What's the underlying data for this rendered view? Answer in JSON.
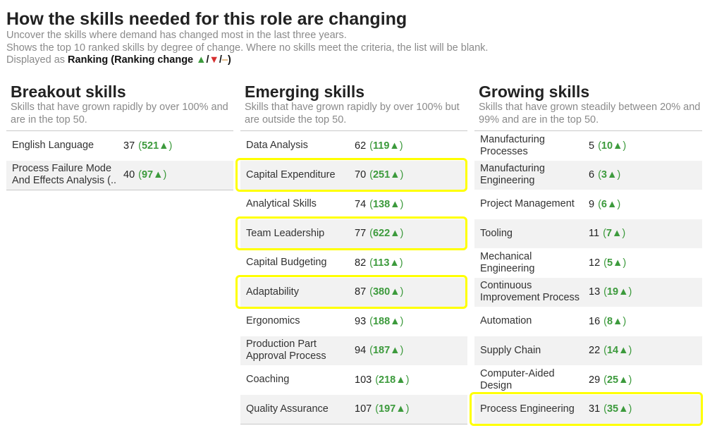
{
  "header": {
    "title": "How the skills needed for this role are changing",
    "subtitle_1": "Uncover the skills where demand has changed most in the last three years.",
    "subtitle_2": "Shows the top 10 ranked skills by degree of change. Where no skills meet the criteria, the list will be blank.",
    "displayed_as_prefix": "Displayed as",
    "displayed_as_value": "Ranking",
    "ranking_change_label": "Ranking change",
    "up_symbol": "▲",
    "down_symbol": "▼",
    "flat_symbol": "–",
    "slash": "/"
  },
  "columns": [
    {
      "title": "Breakout skills",
      "description": "Skills that have grown rapidly by over 100% and are in the top 50.",
      "rows": [
        {
          "name": "English Language",
          "rank": "37",
          "change": "521▲"
        },
        {
          "name": "Process Failure Mode And Effects Analysis (..",
          "rank": "40",
          "change": "97▲"
        }
      ]
    },
    {
      "title": "Emerging skills",
      "description": "Skills that have grown rapidly by over 100% but are outside the top 50.",
      "rows": [
        {
          "name": "Data Analysis",
          "rank": "62",
          "change": "119▲"
        },
        {
          "name": "Capital Expenditure",
          "rank": "70",
          "change": "251▲",
          "highlighted": true
        },
        {
          "name": "Analytical Skills",
          "rank": "74",
          "change": "138▲"
        },
        {
          "name": "Team Leadership",
          "rank": "77",
          "change": "622▲",
          "highlighted": true
        },
        {
          "name": "Capital Budgeting",
          "rank": "82",
          "change": "113▲"
        },
        {
          "name": "Adaptability",
          "rank": "87",
          "change": "380▲",
          "highlighted": true
        },
        {
          "name": "Ergonomics",
          "rank": "93",
          "change": "188▲"
        },
        {
          "name": "Production Part Approval Process",
          "rank": "94",
          "change": "187▲"
        },
        {
          "name": "Coaching",
          "rank": "103",
          "change": "218▲"
        },
        {
          "name": "Quality Assurance",
          "rank": "107",
          "change": "197▲"
        }
      ]
    },
    {
      "title": "Growing skills",
      "description": "Skills that have grown steadily between 20% and 99% and are in the top 50.",
      "rows": [
        {
          "name": "Manufacturing Processes",
          "rank": "5",
          "change": "10▲"
        },
        {
          "name": "Manufacturing Engineering",
          "rank": "6",
          "change": "3▲"
        },
        {
          "name": "Project Management",
          "rank": "9",
          "change": "6▲"
        },
        {
          "name": "Tooling",
          "rank": "11",
          "change": "7▲"
        },
        {
          "name": "Mechanical Engineering",
          "rank": "12",
          "change": "5▲"
        },
        {
          "name": "Continuous Improvement Process",
          "rank": "13",
          "change": "19▲"
        },
        {
          "name": "Automation",
          "rank": "16",
          "change": "8▲"
        },
        {
          "name": "Supply Chain",
          "rank": "22",
          "change": "14▲"
        },
        {
          "name": "Computer-Aided Design",
          "rank": "29",
          "change": "25▲"
        },
        {
          "name": "Process Engineering",
          "rank": "31",
          "change": "35▲",
          "highlighted": true
        }
      ]
    }
  ],
  "colors": {
    "positive": "#3c9a3c",
    "negative": "#d63030",
    "neutral": "#c87a16",
    "highlight": "#ffff00"
  }
}
